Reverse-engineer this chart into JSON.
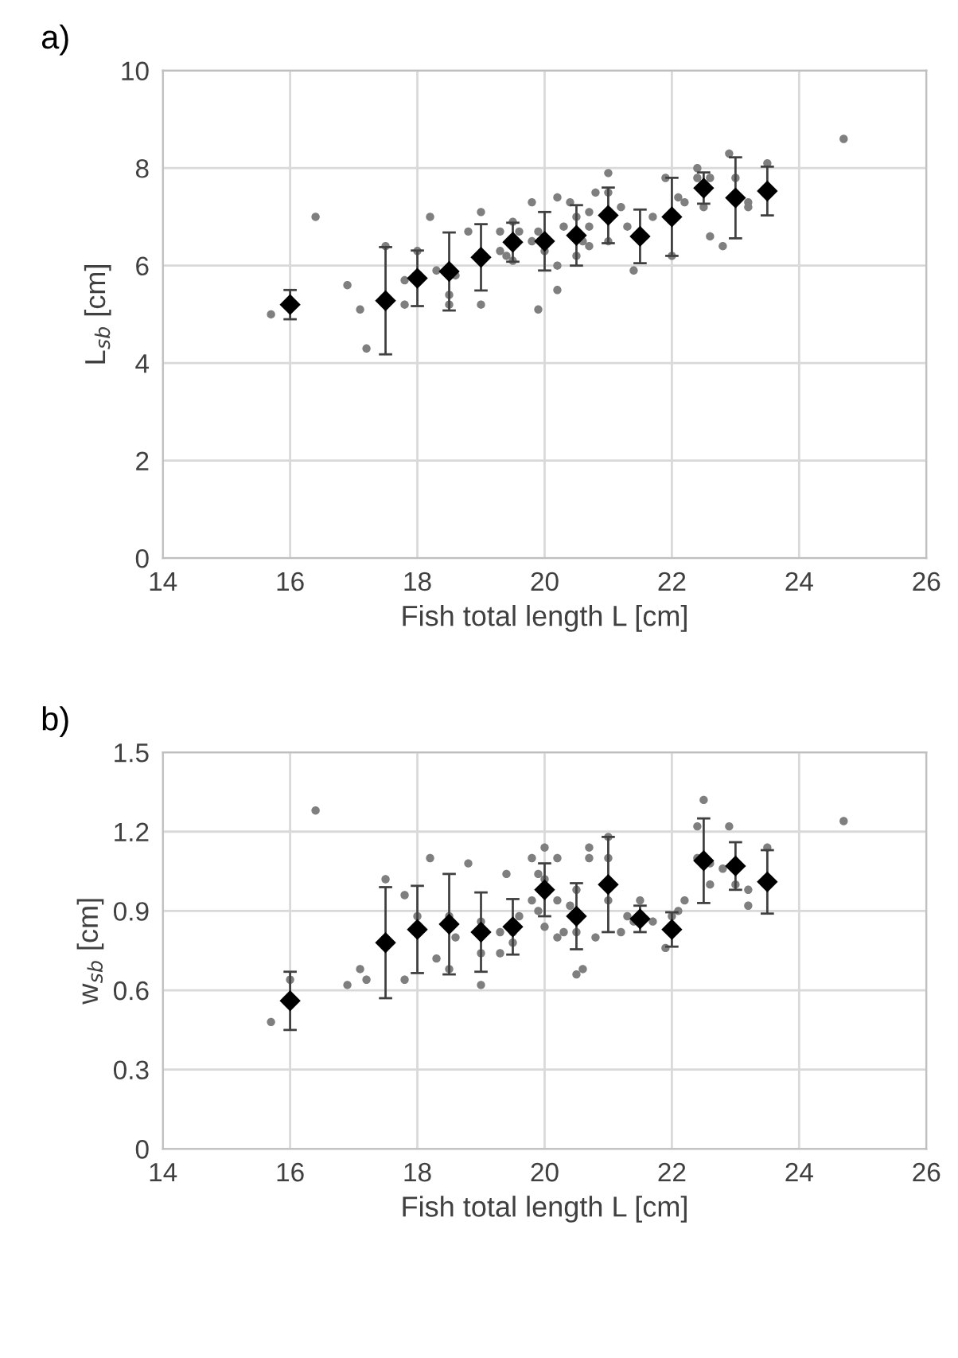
{
  "chart_data": [
    {
      "type": "scatter",
      "title": "a)",
      "xlabel": "Fish total length L [cm]",
      "ylabel": "L$_{sb}$ [cm]",
      "xlim": [
        14,
        26
      ],
      "xticks": [
        14,
        16,
        18,
        20,
        22,
        24,
        26
      ],
      "ylim": [
        0,
        10
      ],
      "yticks": [
        0,
        2,
        4,
        6,
        8,
        10
      ],
      "grid": true,
      "legend": false,
      "series": [
        {
          "color": "#7f7f7f",
          "marker": "circle",
          "x": [
            15.7,
            16.4,
            16.9,
            17.1,
            17.2,
            17.5,
            17.8,
            17.8,
            18,
            18.2,
            18.3,
            18.5,
            18.5,
            18.6,
            18.8,
            19,
            19,
            19.3,
            19.3,
            19.4,
            19.5,
            19.5,
            19.6,
            19.8,
            19.8,
            19.9,
            19.9,
            20,
            20.2,
            20.2,
            20.2,
            20.3,
            20.4,
            20.5,
            20.5,
            20.6,
            20.7,
            20.7,
            20.7,
            20.8,
            21,
            21,
            21,
            21.2,
            21.3,
            21.4,
            21.7,
            21.9,
            22,
            22.1,
            22.2,
            22.4,
            22.4,
            22.5,
            22.6,
            22.6,
            22.8,
            22.9,
            23,
            23.2,
            23.2,
            23.5,
            24.7
          ],
          "values": [
            5.0,
            7.0,
            5.6,
            5.1,
            4.3,
            6.4,
            5.7,
            5.2,
            6.3,
            7.0,
            5.9,
            5.4,
            5.2,
            5.8,
            6.7,
            7.1,
            5.2,
            6.7,
            6.3,
            6.2,
            6.1,
            6.9,
            6.7,
            7.3,
            6.5,
            5.1,
            6.7,
            6.3,
            7.4,
            6.0,
            5.5,
            6.8,
            7.3,
            7.0,
            6.2,
            6.5,
            7.1,
            6.8,
            6.4,
            7.5,
            7.9,
            7.5,
            6.5,
            7.2,
            6.8,
            5.9,
            7.0,
            7.8,
            6.2,
            7.4,
            7.3,
            8.0,
            7.8,
            7.2,
            7.8,
            6.6,
            6.4,
            8.3,
            7.8,
            7.3,
            7.2,
            8.1,
            8.6
          ]
        },
        {
          "color": "#000000",
          "marker": "diamond",
          "x": [
            16,
            17.5,
            18,
            18.5,
            19,
            19.5,
            20,
            20.5,
            21,
            21.5,
            22,
            22.5,
            23,
            23.5
          ],
          "values": [
            5.2,
            5.28,
            5.74,
            5.88,
            6.17,
            6.48,
            6.5,
            6.62,
            7.03,
            6.6,
            7.0,
            7.59,
            7.39,
            7.53
          ],
          "errors": [
            0.3,
            1.1,
            0.57,
            0.8,
            0.68,
            0.4,
            0.6,
            0.62,
            0.57,
            0.55,
            0.8,
            0.32,
            0.83,
            0.5
          ]
        }
      ]
    },
    {
      "type": "scatter",
      "title": "b)",
      "xlabel": "Fish total length L [cm]",
      "ylabel": "w$_{sb}$ [cm]",
      "xlim": [
        14,
        26
      ],
      "xticks": [
        14,
        16,
        18,
        20,
        22,
        24,
        26
      ],
      "ylim": [
        0,
        1.5
      ],
      "yticks": [
        0,
        0.3,
        0.6,
        0.9,
        1.2,
        1.5
      ],
      "grid": true,
      "legend": false,
      "series": [
        {
          "color": "#7f7f7f",
          "marker": "circle",
          "x": [
            15.7,
            16,
            16.4,
            16.9,
            17.1,
            17.2,
            17.5,
            17.8,
            17.8,
            18,
            18.2,
            18.3,
            18.5,
            18.5,
            18.6,
            18.8,
            19,
            19,
            19,
            19.3,
            19.3,
            19.4,
            19.5,
            19.5,
            19.6,
            19.8,
            19.8,
            19.9,
            19.9,
            20,
            20,
            20,
            20.2,
            20.2,
            20.2,
            20.3,
            20.4,
            20.5,
            20.5,
            20.5,
            20.6,
            20.7,
            20.7,
            20.8,
            21,
            21,
            21,
            21.2,
            21.3,
            21.4,
            21.5,
            21.7,
            21.9,
            22,
            22.1,
            22.2,
            22.4,
            22.4,
            22.5,
            22.6,
            22.6,
            22.8,
            22.9,
            23,
            23.2,
            23.2,
            23.5,
            24.7
          ],
          "values": [
            0.48,
            0.64,
            1.28,
            0.62,
            0.68,
            0.64,
            1.02,
            0.96,
            0.64,
            0.88,
            1.1,
            0.72,
            0.88,
            0.68,
            0.8,
            1.08,
            0.86,
            0.74,
            0.62,
            0.82,
            0.74,
            1.04,
            0.82,
            0.78,
            0.88,
            1.1,
            0.94,
            1.04,
            0.9,
            1.14,
            1.02,
            0.84,
            1.1,
            0.94,
            0.8,
            0.82,
            0.92,
            0.98,
            0.82,
            0.66,
            0.68,
            1.14,
            1.1,
            0.8,
            1.18,
            1.1,
            0.94,
            0.82,
            0.88,
            0.86,
            0.94,
            0.86,
            0.76,
            0.88,
            0.9,
            0.94,
            1.22,
            1.1,
            1.32,
            1.08,
            1.0,
            1.06,
            1.22,
            1.0,
            0.98,
            0.92,
            1.14,
            1.24
          ]
        },
        {
          "color": "#000000",
          "marker": "diamond",
          "x": [
            16,
            17.5,
            18,
            18.5,
            19,
            19.5,
            20,
            20.5,
            21,
            21.5,
            22,
            22.5,
            23,
            23.5
          ],
          "values": [
            0.56,
            0.78,
            0.83,
            0.85,
            0.82,
            0.84,
            0.98,
            0.88,
            1.0,
            0.87,
            0.83,
            1.09,
            1.07,
            1.01
          ],
          "errors": [
            0.11,
            0.21,
            0.165,
            0.19,
            0.15,
            0.105,
            0.1,
            0.125,
            0.18,
            0.05,
            0.065,
            0.16,
            0.09,
            0.12
          ]
        }
      ]
    }
  ]
}
